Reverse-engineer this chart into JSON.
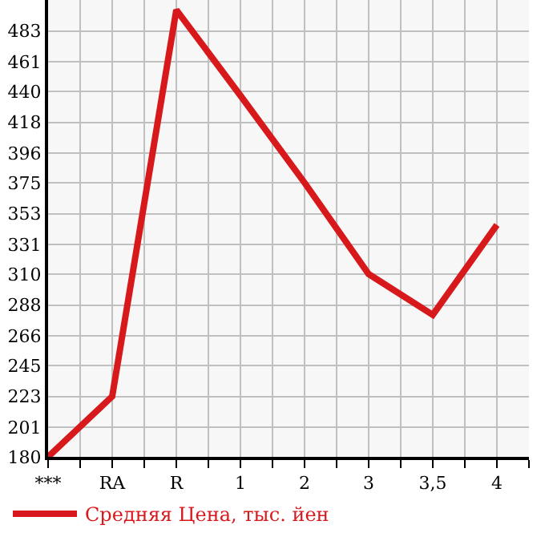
{
  "chart_data": {
    "type": "line",
    "categories": [
      "***",
      "RA",
      "R",
      "1",
      "2",
      "3",
      "3,5",
      "4"
    ],
    "series": [
      {
        "name": "Средняя Цена, тыс. йен",
        "color": "#d7191c",
        "values": [
          180,
          223,
          498,
          437,
          375,
          310,
          281,
          345
        ]
      }
    ],
    "ylim": [
      180,
      505
    ],
    "yticks": [
      180,
      201,
      223,
      245,
      266,
      288,
      310,
      331,
      353,
      375,
      396,
      418,
      440,
      461,
      483
    ],
    "grid": true,
    "legend": "bottom left",
    "marker": "none",
    "line_style": "solid"
  }
}
